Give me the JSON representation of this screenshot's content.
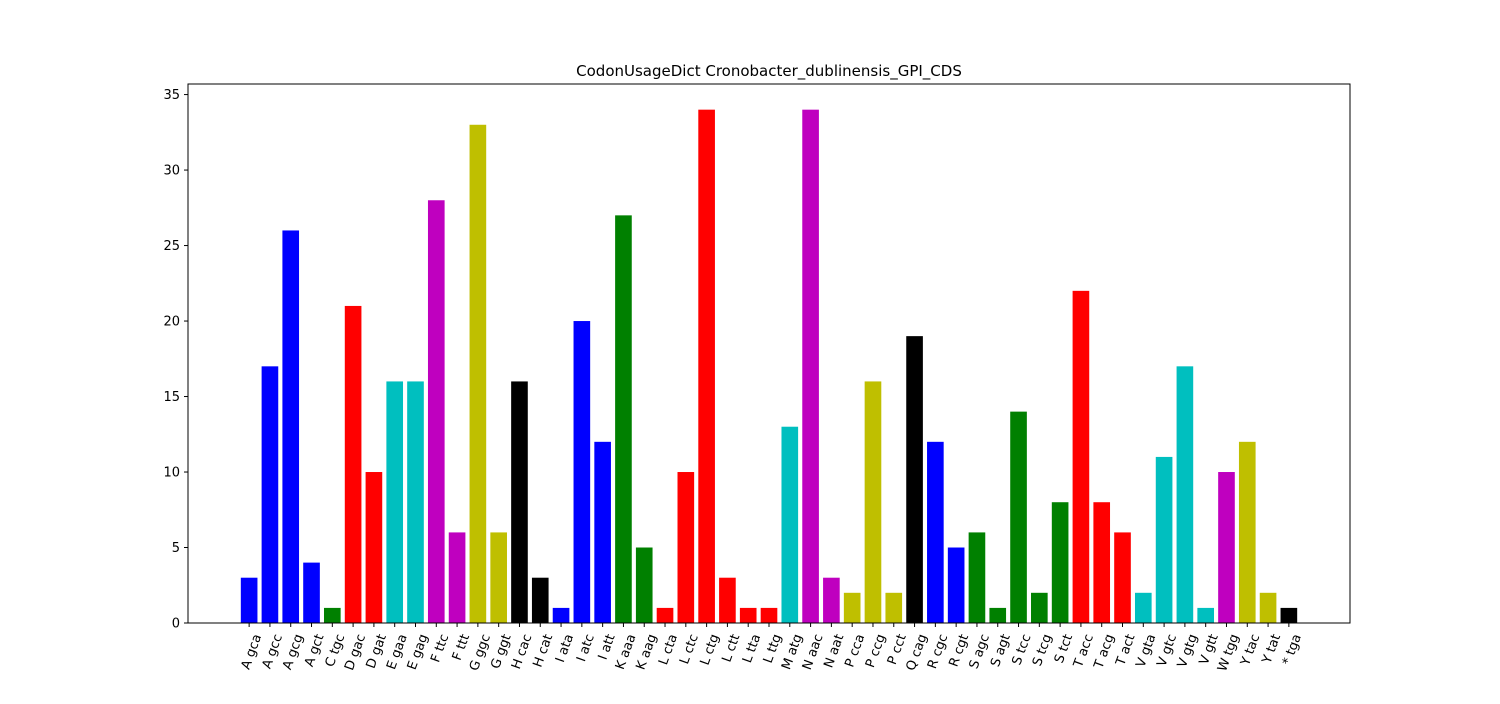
{
  "chart_data": {
    "type": "bar",
    "title": "CodonUsageDict Cronobacter_dublinensis_GPI_CDS",
    "xlabel": "",
    "ylabel": "",
    "ylim": [
      0,
      35.7
    ],
    "yticks": [
      0,
      5,
      10,
      15,
      20,
      25,
      30,
      35
    ],
    "grid": false,
    "legend": "none",
    "categories": [
      "A gca",
      "A gcc",
      "A gcg",
      "A gct",
      "C tgc",
      "D gac",
      "D gat",
      "E gaa",
      "E gag",
      "F ttc",
      "F ttt",
      "G ggc",
      "G ggt",
      "H cac",
      "H cat",
      "I ata",
      "I atc",
      "I att",
      "K aaa",
      "K aag",
      "L cta",
      "L ctc",
      "L ctg",
      "L ctt",
      "L tta",
      "L ttg",
      "M atg",
      "N aac",
      "N aat",
      "P cca",
      "P ccg",
      "P cct",
      "Q cag",
      "R cgc",
      "R cgt",
      "S agc",
      "S agt",
      "S tcc",
      "S tcg",
      "S tct",
      "T acc",
      "T acg",
      "T act",
      "V gta",
      "V gtc",
      "V gtg",
      "V gtt",
      "W tgg",
      "Y tac",
      "Y tat",
      "* tga"
    ],
    "values": [
      3,
      17,
      26,
      4,
      1,
      21,
      10,
      16,
      16,
      28,
      6,
      33,
      6,
      16,
      3,
      1,
      20,
      12,
      27,
      5,
      1,
      10,
      34,
      3,
      1,
      1,
      13,
      34,
      3,
      2,
      16,
      2,
      19,
      12,
      5,
      6,
      1,
      14,
      2,
      8,
      22,
      8,
      6,
      2,
      11,
      17,
      1,
      10,
      12,
      2,
      1
    ],
    "colors": [
      "#0000ff",
      "#0000ff",
      "#0000ff",
      "#0000ff",
      "#008000",
      "#ff0000",
      "#ff0000",
      "#00bfbf",
      "#00bfbf",
      "#bf00bf",
      "#bf00bf",
      "#bfbf00",
      "#bfbf00",
      "#000000",
      "#000000",
      "#0000ff",
      "#0000ff",
      "#0000ff",
      "#008000",
      "#008000",
      "#ff0000",
      "#ff0000",
      "#ff0000",
      "#ff0000",
      "#ff0000",
      "#ff0000",
      "#00bfbf",
      "#bf00bf",
      "#bf00bf",
      "#bfbf00",
      "#bfbf00",
      "#bfbf00",
      "#000000",
      "#0000ff",
      "#0000ff",
      "#008000",
      "#008000",
      "#008000",
      "#008000",
      "#008000",
      "#ff0000",
      "#ff0000",
      "#ff0000",
      "#00bfbf",
      "#00bfbf",
      "#00bfbf",
      "#00bfbf",
      "#bf00bf",
      "#bfbf00",
      "#bfbf00",
      "#000000"
    ]
  }
}
